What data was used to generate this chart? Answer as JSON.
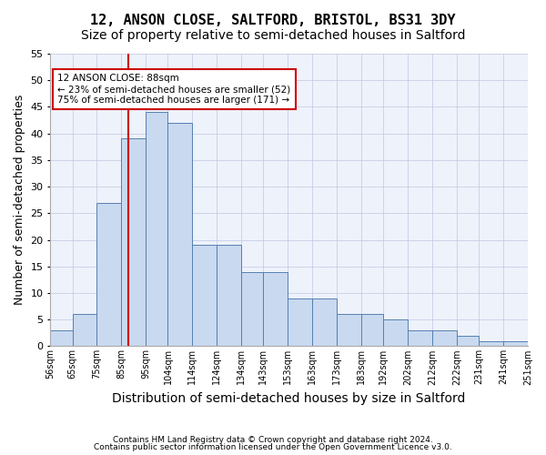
{
  "title_line1": "12, ANSON CLOSE, SALTFORD, BRISTOL, BS31 3DY",
  "title_line2": "Size of property relative to semi-detached houses in Saltford",
  "xlabel": "Distribution of semi-detached houses by size in Saltford",
  "ylabel": "Number of semi-detached properties",
  "footer_line1": "Contains HM Land Registry data © Crown copyright and database right 2024.",
  "footer_line2": "Contains public sector information licensed under the Open Government Licence v3.0.",
  "annotation_line1": "12 ANSON CLOSE: 88sqm",
  "annotation_line2": "← 23% of semi-detached houses are smaller (52)",
  "annotation_line3": "75% of semi-detached houses are larger (171) →",
  "property_size": 88,
  "bin_edges": [
    56,
    65,
    75,
    85,
    95,
    104,
    114,
    124,
    134,
    143,
    153,
    163,
    173,
    183,
    192,
    202,
    212,
    222,
    231,
    241,
    251
  ],
  "bin_labels": [
    "56sqm",
    "65sqm",
    "75sqm",
    "85sqm",
    "95sqm",
    "104sqm",
    "114sqm",
    "124sqm",
    "134sqm",
    "143sqm",
    "153sqm",
    "163sqm",
    "173sqm",
    "183sqm",
    "192sqm",
    "202sqm",
    "212sqm",
    "222sqm",
    "231sqm",
    "241sqm",
    "251sqm"
  ],
  "counts": [
    3,
    6,
    27,
    39,
    44,
    42,
    19,
    19,
    14,
    14,
    9,
    9,
    6,
    6,
    5,
    3,
    3,
    2,
    1,
    1
  ],
  "bar_facecolor": "#c9d9f0",
  "bar_edgecolor": "#5580b0",
  "vline_color": "#cc0000",
  "vline_x": 88,
  "ylim": [
    0,
    55
  ],
  "yticks": [
    0,
    5,
    10,
    15,
    20,
    25,
    30,
    35,
    40,
    45,
    50,
    55
  ],
  "grid_color": "#c0c8e0",
  "background_color": "#eef2fb",
  "annotation_box_edgecolor": "#cc0000",
  "title1_fontsize": 11,
  "title2_fontsize": 10,
  "xlabel_fontsize": 10,
  "ylabel_fontsize": 9
}
